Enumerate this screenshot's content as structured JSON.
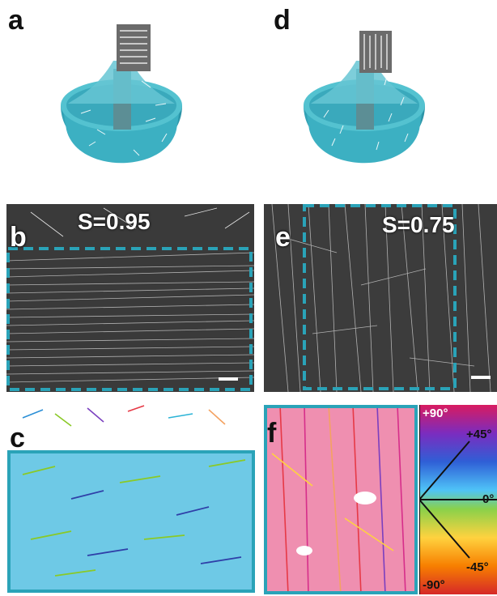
{
  "panels": {
    "a": {
      "label": "a"
    },
    "b": {
      "label": "b",
      "order": "S=0.95"
    },
    "c": {
      "label": "c"
    },
    "d": {
      "label": "d"
    },
    "e": {
      "label": "e",
      "order": "S=0.75"
    },
    "f": {
      "label": "f"
    }
  },
  "colorwheel": {
    "labels": [
      "+90°",
      "+45°",
      "0°",
      "-45°",
      "-90°"
    ]
  },
  "colors": {
    "bath": "#3fb3c4",
    "dash": "#2aa3b8",
    "sem_bg": "#2b2b2b"
  }
}
